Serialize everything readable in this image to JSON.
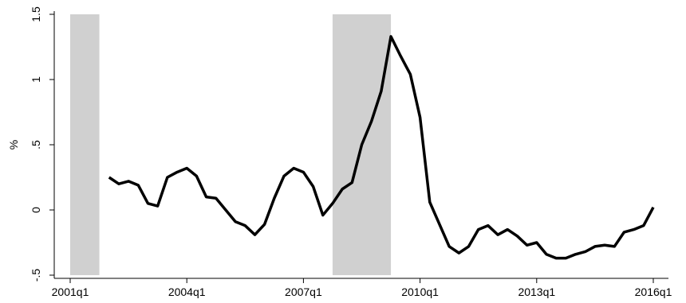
{
  "chart_data": {
    "type": "line",
    "ylabel": "%",
    "categories": [
      "2001q1",
      "2001q2",
      "2001q3",
      "2001q4",
      "2002q1",
      "2002q2",
      "2002q3",
      "2002q4",
      "2003q1",
      "2003q2",
      "2003q3",
      "2003q4",
      "2004q1",
      "2004q2",
      "2004q3",
      "2004q4",
      "2005q1",
      "2005q2",
      "2005q3",
      "2005q4",
      "2006q1",
      "2006q2",
      "2006q3",
      "2006q4",
      "2007q1",
      "2007q2",
      "2007q3",
      "2007q4",
      "2008q1",
      "2008q2",
      "2008q3",
      "2008q4",
      "2009q1",
      "2009q2",
      "2009q3",
      "2009q4",
      "2010q1",
      "2010q2",
      "2010q3",
      "2010q4",
      "2011q1",
      "2011q2",
      "2011q3",
      "2011q4",
      "2012q1",
      "2012q2",
      "2012q3",
      "2012q4",
      "2013q1",
      "2013q2",
      "2013q3",
      "2013q4",
      "2014q1",
      "2014q2",
      "2014q3",
      "2014q4",
      "2015q1",
      "2015q2",
      "2015q3",
      "2015q4",
      "2016q1"
    ],
    "series": [
      {
        "color": "#000000",
        "values": [
          null,
          null,
          null,
          null,
          0.25,
          0.2,
          0.22,
          0.19,
          0.05,
          0.03,
          0.25,
          0.29,
          0.32,
          0.26,
          0.1,
          0.09,
          0.0,
          -0.09,
          -0.12,
          -0.19,
          -0.11,
          0.09,
          0.26,
          0.32,
          0.29,
          0.18,
          -0.04,
          0.05,
          0.16,
          0.21,
          0.5,
          0.68,
          0.91,
          1.33,
          1.18,
          1.04,
          0.71,
          0.06,
          -0.11,
          -0.28,
          -0.33,
          -0.28,
          -0.15,
          -0.12,
          -0.19,
          -0.15,
          -0.2,
          -0.27,
          -0.25,
          -0.34,
          -0.37,
          -0.37,
          -0.34,
          -0.32,
          -0.28,
          -0.27,
          -0.28,
          -0.17,
          -0.15,
          -0.12,
          0.02
        ]
      }
    ],
    "xticks": [
      "2001q1",
      "2004q1",
      "2007q1",
      "2010q1",
      "2013q1",
      "2016q1"
    ],
    "ylim": [
      -0.5,
      1.5
    ],
    "yticks": [
      {
        "value": -0.5,
        "label": "-.5"
      },
      0,
      {
        "value": 0.5,
        "label": ".5"
      },
      1,
      1.5
    ],
    "shaded_regions": [
      {
        "start": "2001q1",
        "end": "2001q4",
        "color": "#d0d0d0"
      },
      {
        "start": "2007q4",
        "end": "2009q2",
        "color": "#d0d0d0"
      }
    ],
    "grid": false
  }
}
